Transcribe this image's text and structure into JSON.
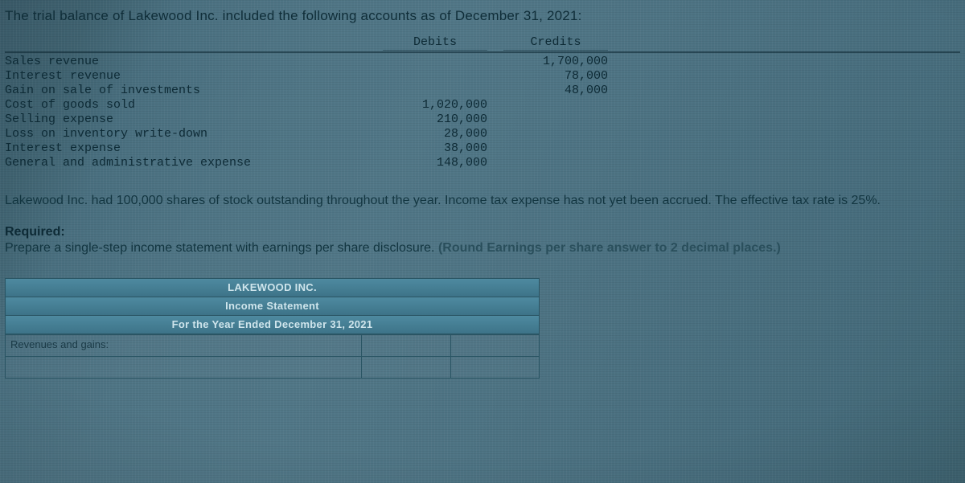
{
  "intro": "The trial balance of Lakewood Inc. included the following accounts as of December 31, 2021:",
  "trial_balance": {
    "headers": {
      "debits": "Debits",
      "credits": "Credits"
    },
    "rows": [
      {
        "account": "Sales revenue",
        "debit": "",
        "credit": "1,700,000"
      },
      {
        "account": "Interest revenue",
        "debit": "",
        "credit": "78,000"
      },
      {
        "account": "Gain on sale of investments",
        "debit": "",
        "credit": "48,000"
      },
      {
        "account": "Cost of goods sold",
        "debit": "1,020,000",
        "credit": ""
      },
      {
        "account": "Selling expense",
        "debit": "210,000",
        "credit": ""
      },
      {
        "account": "Loss on inventory write-down",
        "debit": "28,000",
        "credit": ""
      },
      {
        "account": "Interest expense",
        "debit": "38,000",
        "credit": ""
      },
      {
        "account": "General and administrative expense",
        "debit": "148,000",
        "credit": ""
      }
    ]
  },
  "paragraph": "Lakewood Inc. had 100,000 shares of stock outstanding throughout the year. Income tax expense has not yet been accrued. The effective tax rate is 25%.",
  "required_label": "Required:",
  "required_text_a": "Prepare a single-step income statement with earnings per share disclosure. ",
  "required_text_b": "(Round Earnings per share answer to 2 decimal places.)",
  "answer_area": {
    "line1": "LAKEWOOD INC.",
    "line2": "Income Statement",
    "line3": "For the Year Ended December 31, 2021",
    "row1_label": "Revenues and gains:"
  },
  "style": {
    "font_mono": "Courier New",
    "font_sans": "Arial",
    "text_color": "#123540",
    "header_bg_top": "#4e8aa0",
    "header_bg_bottom": "#3d7388",
    "border_color": "#2a5564",
    "hint_color": "#2a4f5c",
    "body_bg_stops": [
      "#3a5a68",
      "#3f6270",
      "#4a7080",
      "#4f7585",
      "#517787",
      "#4e7484",
      "#4a7080",
      "#466c7c",
      "#3f6573"
    ]
  }
}
